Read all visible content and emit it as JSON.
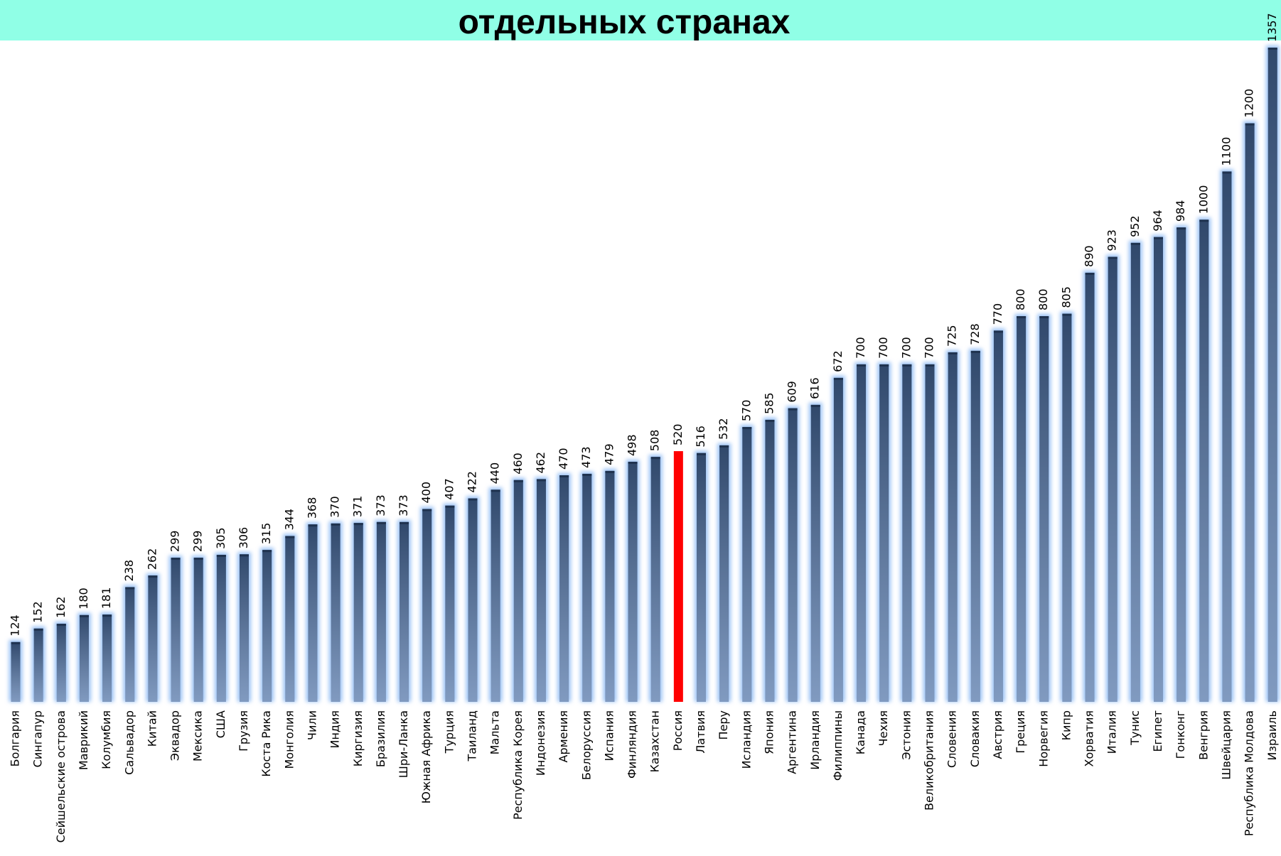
{
  "chart_data": {
    "type": "bar",
    "title": "отдельных  странах",
    "categories": [
      "Болгария",
      "Сингапур",
      "Сейшельские острова",
      "Маврикий",
      "Колумбия",
      "Сальвадор",
      "Китай",
      "Эквадор",
      "Мексика",
      "США",
      "Грузия",
      "Коста Рика",
      "Монголия",
      "Чили",
      "Индия",
      "Киргизия",
      "Бразилия",
      "Шри-Ланка",
      "Южная Африка",
      "Турция",
      "Таиланд",
      "Мальта",
      "Республика Корея",
      "Индонезия",
      "Армения",
      "Белоруссия",
      "Испания",
      "Финляндия",
      "Казахстан",
      "Россия",
      "Латвия",
      "Перу",
      "Исландия",
      "Япония",
      "Аргентина",
      "Ирландия",
      "Филиппины",
      "Канада",
      "Чехия",
      "Эстония",
      "Великобритания",
      "Словения",
      "Словакия",
      "Австрия",
      "Греция",
      "Норвегия",
      "Кипр",
      "Хорватия",
      "Италия",
      "Тунис",
      "Египет",
      "Гонконг",
      "Венгрия",
      "Швейцария",
      "Республика Молдова",
      "Израиль"
    ],
    "values": [
      124,
      152,
      162,
      180,
      181,
      238,
      262,
      299,
      299,
      305,
      306,
      315,
      344,
      368,
      370,
      371,
      373,
      373,
      400,
      407,
      422,
      440,
      460,
      462,
      470,
      473,
      479,
      498,
      508,
      520,
      516,
      532,
      570,
      585,
      609,
      616,
      672,
      700,
      700,
      700,
      700,
      725,
      728,
      770,
      800,
      800,
      805,
      890,
      923,
      952,
      964,
      984,
      1000,
      1100,
      1200,
      1357
    ],
    "colors": [
      "#4a6fa5",
      "#4a6fa5",
      "#4a6fa5",
      "#4a6fa5",
      "#4a6fa5",
      "#4a6fa5",
      "#4a6fa5",
      "#4a6fa5",
      "#4a6fa5",
      "#4a6fa5",
      "#4a6fa5",
      "#4a6fa5",
      "#4a6fa5",
      "#4a6fa5",
      "#4a6fa5",
      "#4a6fa5",
      "#4a6fa5",
      "#4a6fa5",
      "#4a6fa5",
      "#4a6fa5",
      "#4a6fa5",
      "#4a6fa5",
      "#4a6fa5",
      "#4a6fa5",
      "#4a6fa5",
      "#4a6fa5",
      "#4a6fa5",
      "#4a6fa5",
      "#4a6fa5",
      "#ff0000",
      "#4a6fa5",
      "#4a6fa5",
      "#4a6fa5",
      "#4a6fa5",
      "#4a6fa5",
      "#4a6fa5",
      "#4a6fa5",
      "#4a6fa5",
      "#4a6fa5",
      "#4a6fa5",
      "#4a6fa5",
      "#4a6fa5",
      "#4a6fa5",
      "#4a6fa5",
      "#4a6fa5",
      "#4a6fa5",
      "#4a6fa5",
      "#4a6fa5",
      "#4a6fa5",
      "#4a6fa5",
      "#4a6fa5",
      "#4a6fa5",
      "#4a6fa5",
      "#4a6fa5",
      "#4a6fa5",
      "#4a6fa5"
    ]
  }
}
